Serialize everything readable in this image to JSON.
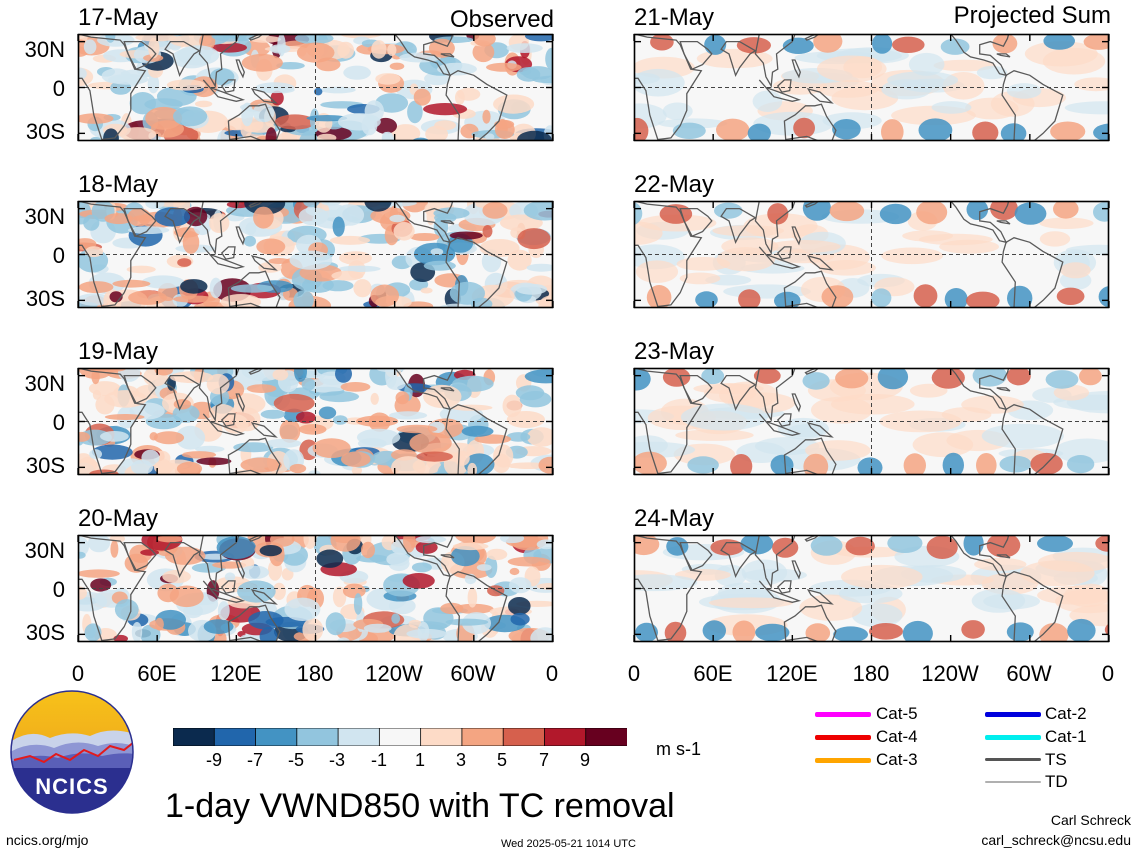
{
  "headers": {
    "left": "Observed",
    "right": "Projected Sum"
  },
  "latitude_labels": [
    "30N",
    "0",
    "30S"
  ],
  "longitude_labels": [
    "0",
    "60E",
    "120E",
    "180",
    "120W",
    "60W",
    "0"
  ],
  "colorbar": {
    "labels": [
      "-9",
      "-7",
      "-5",
      "-3",
      "-1",
      "1",
      "3",
      "5",
      "7",
      "9"
    ],
    "colors": [
      "#0b2a4e",
      "#2166ac",
      "#4393c3",
      "#92c5de",
      "#d1e5f0",
      "#f7f7f7",
      "#fddbc7",
      "#f4a582",
      "#d6604d",
      "#b2182b",
      "#67001f"
    ],
    "units": "m s-1"
  },
  "title": "1-day VWND850 with TC removal",
  "legend": [
    {
      "label": "Cat-5",
      "color": "#ff00ff"
    },
    {
      "label": "Cat-2",
      "color": "#0000dd"
    },
    {
      "label": "Cat-4",
      "color": "#ee0000"
    },
    {
      "label": "Cat-1",
      "color": "#00eeee"
    },
    {
      "label": "Cat-3",
      "color": "#ffa500"
    },
    {
      "label": "TS",
      "color": "#555555"
    },
    {
      "label": "TD",
      "color": "#b0b0b0"
    }
  ],
  "footer": {
    "logo_text": "NCICS",
    "url": "ncics.org/mjo",
    "timestamp": "Wed 2025-05-21 1014 UTC",
    "author": "Carl Schreck",
    "email": "carl_schreck@ncsu.edu"
  },
  "chart_data": [
    {
      "type": "heatmap",
      "panel": "observed",
      "date": "17-May"
    },
    {
      "type": "heatmap",
      "panel": "observed",
      "date": "18-May"
    },
    {
      "type": "heatmap",
      "panel": "observed",
      "date": "19-May"
    },
    {
      "type": "heatmap",
      "panel": "observed",
      "date": "20-May"
    },
    {
      "type": "heatmap",
      "panel": "projected",
      "date": "21-May"
    },
    {
      "type": "heatmap",
      "panel": "projected",
      "date": "22-May"
    },
    {
      "type": "heatmap",
      "panel": "projected",
      "date": "23-May"
    },
    {
      "type": "heatmap",
      "panel": "projected",
      "date": "24-May"
    }
  ]
}
